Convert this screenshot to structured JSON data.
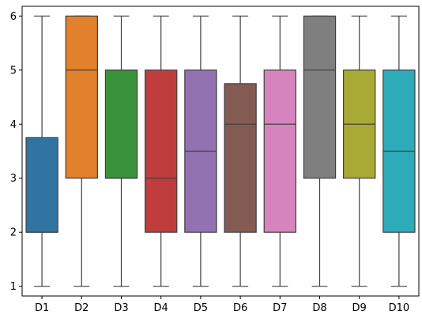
{
  "chart_data": {
    "type": "box",
    "title": "",
    "xlabel": "",
    "ylabel": "",
    "ylim": [
      0.82,
      6.18
    ],
    "yticks": [
      1,
      2,
      3,
      4,
      5,
      6
    ],
    "ytick_labels": [
      "1",
      "2",
      "3",
      "4",
      "5",
      "6"
    ],
    "grid": false,
    "legend": "none",
    "categories": [
      "D1",
      "D2",
      "D3",
      "D4",
      "D5",
      "D6",
      "D7",
      "D8",
      "D9",
      "D10"
    ],
    "boxes": [
      {
        "name": "D1",
        "min": 1,
        "q1": 2,
        "median": 2,
        "q3": 3.75,
        "max": 6,
        "color": "#3274a1"
      },
      {
        "name": "D2",
        "min": 1,
        "q1": 3,
        "median": 5,
        "q3": 6,
        "max": 6,
        "color": "#e1812c"
      },
      {
        "name": "D3",
        "min": 1,
        "q1": 3,
        "median": 3,
        "q3": 5,
        "max": 6,
        "color": "#3a923a"
      },
      {
        "name": "D4",
        "min": 1,
        "q1": 2,
        "median": 3,
        "q3": 5,
        "max": 6,
        "color": "#c03d3e"
      },
      {
        "name": "D5",
        "min": 1,
        "q1": 2,
        "median": 3.5,
        "q3": 5,
        "max": 6,
        "color": "#9372b2"
      },
      {
        "name": "D6",
        "min": 1,
        "q1": 2,
        "median": 4,
        "q3": 4.75,
        "max": 6,
        "color": "#845b53"
      },
      {
        "name": "D7",
        "min": 1,
        "q1": 2,
        "median": 4,
        "q3": 5,
        "max": 6,
        "color": "#d684bd"
      },
      {
        "name": "D8",
        "min": 1,
        "q1": 3,
        "median": 5,
        "q3": 6,
        "max": 6,
        "color": "#7f7f7f"
      },
      {
        "name": "D9",
        "min": 1,
        "q1": 3,
        "median": 4,
        "q3": 5,
        "max": 6,
        "color": "#a9aa35"
      },
      {
        "name": "D10",
        "min": 1,
        "q1": 2,
        "median": 3.5,
        "q3": 5,
        "max": 6,
        "color": "#2eabb8"
      }
    ]
  }
}
